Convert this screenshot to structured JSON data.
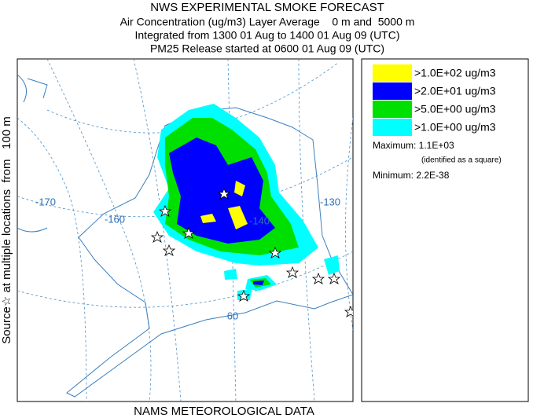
{
  "header": {
    "title": "NWS EXPERIMENTAL SMOKE FORECAST",
    "line1": "Air Concentration (ug/m3) Layer Average    0 m and  5000 m",
    "line2": "Integrated from 1300 01 Aug to 1400 01 Aug 09 (UTC)",
    "line3": "PM25 Release started at 0600 01 Aug 09 (UTC)"
  },
  "side_label": "Source☆ at multiple locations  from   100 m",
  "footer": "NAMS METEOROLOGICAL DATA",
  "map": {
    "labels": [
      "-170",
      "-160",
      "-140",
      "-130",
      "60"
    ]
  },
  "legend": {
    "items": [
      {
        "label": ">1.0E+02 ug/m3",
        "color": "#ffff00"
      },
      {
        "label": ">2.0E+01 ug/m3",
        "color": "#0000ff"
      },
      {
        "label": ">5.0E+00 ug/m3",
        "color": "#00e000"
      },
      {
        "label": ">1.0E+00 ug/m3",
        "color": "#00ffff"
      }
    ],
    "maximum": "Maximum: 1.1E+03",
    "maximum_note": "(identified as a square)",
    "minimum": "Minimum: 2.2E-38"
  }
}
